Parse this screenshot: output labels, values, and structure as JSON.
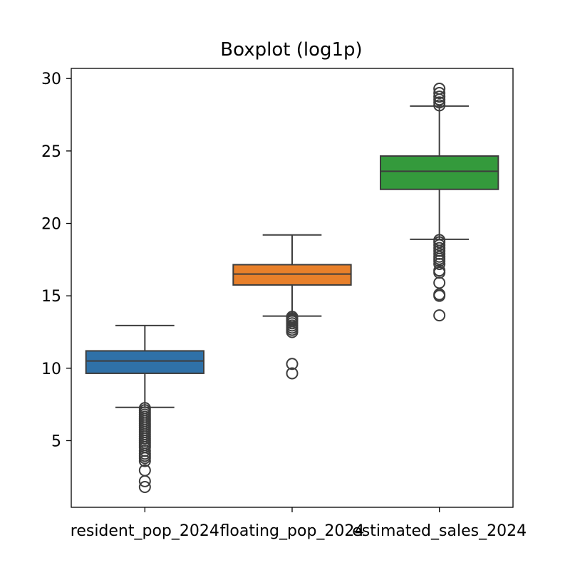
{
  "chart_data": {
    "type": "box",
    "title": "Boxplot (log1p)",
    "xlabel": "",
    "ylabel": "",
    "ylim": [
      0.4,
      30.7
    ],
    "yticks": [
      5,
      10,
      15,
      20,
      25,
      30
    ],
    "grid": false,
    "legend": "none",
    "categories": [
      "resident_pop_2024",
      "floating_pop_2024",
      "estimated_sales_2024"
    ],
    "series": [
      {
        "category": "resident_pop_2024",
        "color": "#2f71a8",
        "whisker_low": 7.3,
        "q1": 9.65,
        "median": 10.5,
        "q3": 11.2,
        "whisker_high": 12.95,
        "outliers": [
          7.25,
          7.1,
          6.95,
          6.8,
          6.65,
          6.5,
          6.35,
          6.2,
          6.05,
          5.9,
          5.75,
          5.6,
          5.45,
          5.3,
          5.15,
          5.0,
          4.85,
          4.7,
          4.55,
          4.3,
          4.1,
          3.95,
          3.8,
          3.6,
          2.95,
          2.2,
          1.8
        ]
      },
      {
        "category": "floating_pop_2024",
        "color": "#e8802a",
        "whisker_low": 13.6,
        "q1": 15.75,
        "median": 16.5,
        "q3": 17.15,
        "whisker_high": 19.2,
        "outliers": [
          13.55,
          13.45,
          13.35,
          13.25,
          13.1,
          12.95,
          12.8,
          12.65,
          12.5,
          10.3,
          9.65
        ]
      },
      {
        "category": "estimated_sales_2024",
        "color": "#349a3c",
        "whisker_low": 18.9,
        "q1": 22.35,
        "median": 23.6,
        "q3": 24.65,
        "whisker_high": 28.1,
        "outliers": [
          29.3,
          29.0,
          28.75,
          28.55,
          28.35,
          28.15,
          18.85,
          18.7,
          18.5,
          18.3,
          18.1,
          17.9,
          17.7,
          17.55,
          17.4,
          17.2,
          16.75,
          16.6,
          15.9,
          15.1,
          15.0,
          13.65
        ]
      }
    ]
  }
}
